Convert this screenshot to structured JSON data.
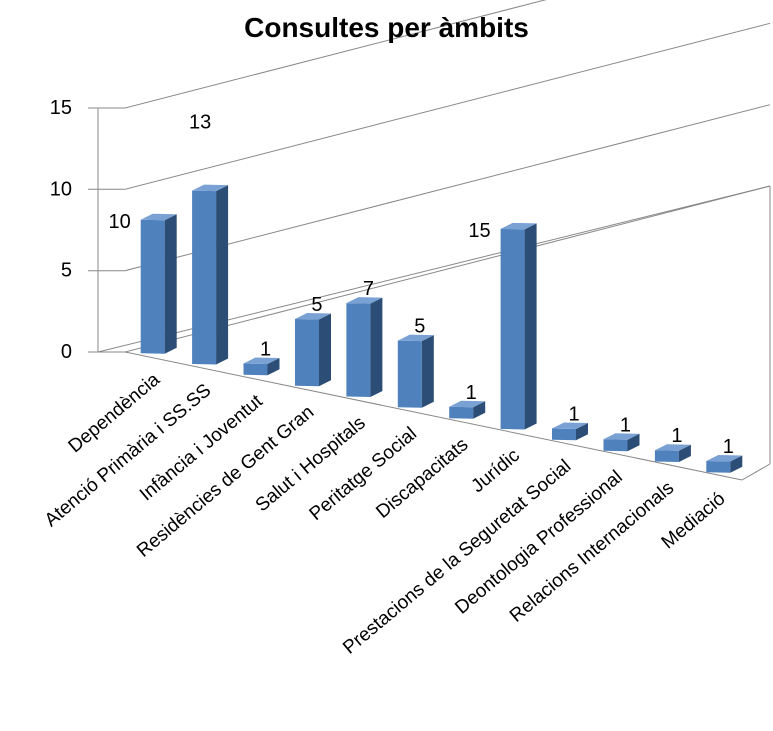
{
  "chart_data": {
    "type": "bar",
    "title": "Consultes per àmbits",
    "categories": [
      "Dependència",
      "Atenció Primària i SS.SS",
      "Infància i Joventut",
      "Residències de Gent Gran",
      "Salut i Hospitals",
      "Peritatge Social",
      "Discapacitats",
      "Jurídic",
      "Prestacions de la Seguretat Social",
      "Deontologia Professional",
      "Relacions Internacionals",
      "Mediació"
    ],
    "values": [
      10,
      13,
      1,
      5,
      7,
      5,
      1,
      15,
      1,
      1,
      1,
      1
    ],
    "yticks": [
      "0",
      "5",
      "10",
      "15"
    ],
    "ylim": [
      0,
      15
    ],
    "grid": true,
    "style": "3d-column",
    "colors": {
      "front": "#4f81bd",
      "side": "#2c4d75",
      "top": "#7aa1d3",
      "grid": "#888888",
      "text": "#000000"
    }
  }
}
